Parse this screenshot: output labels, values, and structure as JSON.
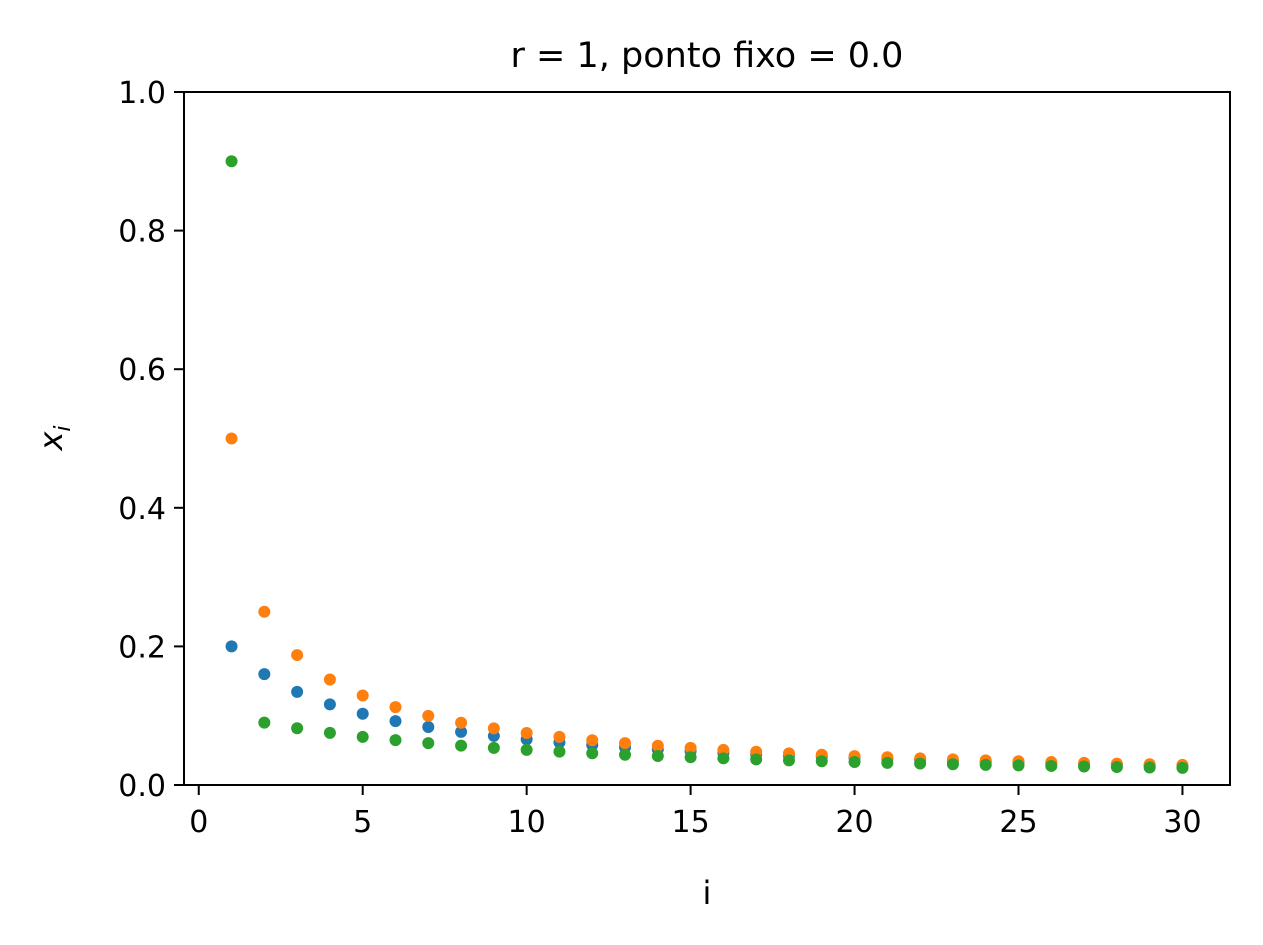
{
  "chart_data": {
    "type": "scatter",
    "title": "r = 1, ponto fixo = 0.0",
    "xlabel": "i",
    "ylabel_base": "x",
    "ylabel_sub": "i",
    "xlim": [
      -0.45,
      31.45
    ],
    "ylim": [
      0.0,
      1.0
    ],
    "xticks": [
      0,
      5,
      10,
      15,
      20,
      25,
      30
    ],
    "yticks": [
      0.0,
      0.2,
      0.4,
      0.6,
      0.8,
      1.0
    ],
    "xtick_labels": [
      "0",
      "5",
      "10",
      "15",
      "20",
      "25",
      "30"
    ],
    "ytick_labels": [
      "0.0",
      "0.2",
      "0.4",
      "0.6",
      "0.8",
      "1.0"
    ],
    "grid": false,
    "legend": "none",
    "x": [
      1,
      2,
      3,
      4,
      5,
      6,
      7,
      8,
      9,
      10,
      11,
      12,
      13,
      14,
      15,
      16,
      17,
      18,
      19,
      20,
      21,
      22,
      23,
      24,
      25,
      26,
      27,
      28,
      29,
      30
    ],
    "series": [
      {
        "color": "#1f77b4",
        "values": [
          0.2,
          0.16,
          0.1344,
          0.1163,
          0.1028,
          0.0922,
          0.0837,
          0.0767,
          0.0708,
          0.0658,
          0.0615,
          0.0577,
          0.0544,
          0.0514,
          0.0488,
          0.0464,
          0.0443,
          0.0423,
          0.0405,
          0.0389,
          0.0374,
          0.036,
          0.0347,
          0.0335,
          0.0324,
          0.0313,
          0.0303,
          0.0294,
          0.0285,
          0.0277
        ]
      },
      {
        "color": "#ff7f0e",
        "values": [
          0.5,
          0.25,
          0.1875,
          0.1523,
          0.1291,
          0.1124,
          0.0998,
          0.0898,
          0.0817,
          0.075,
          0.0694,
          0.0646,
          0.0604,
          0.0567,
          0.0535,
          0.0506,
          0.048,
          0.0457,
          0.0436,
          0.0417,
          0.04,
          0.0384,
          0.0369,
          0.0355,
          0.0342,
          0.0331,
          0.032,
          0.0309,
          0.03,
          0.0291
        ]
      },
      {
        "color": "#2ca02c",
        "values": [
          0.9,
          0.09,
          0.0819,
          0.0752,
          0.0695,
          0.0647,
          0.0605,
          0.0568,
          0.0536,
          0.0507,
          0.0482,
          0.0458,
          0.0437,
          0.0418,
          0.0401,
          0.0385,
          0.037,
          0.0356,
          0.0343,
          0.0331,
          0.032,
          0.031,
          0.03,
          0.0291,
          0.0283,
          0.0275,
          0.0267,
          0.026,
          0.0253,
          0.0247
        ]
      }
    ]
  }
}
